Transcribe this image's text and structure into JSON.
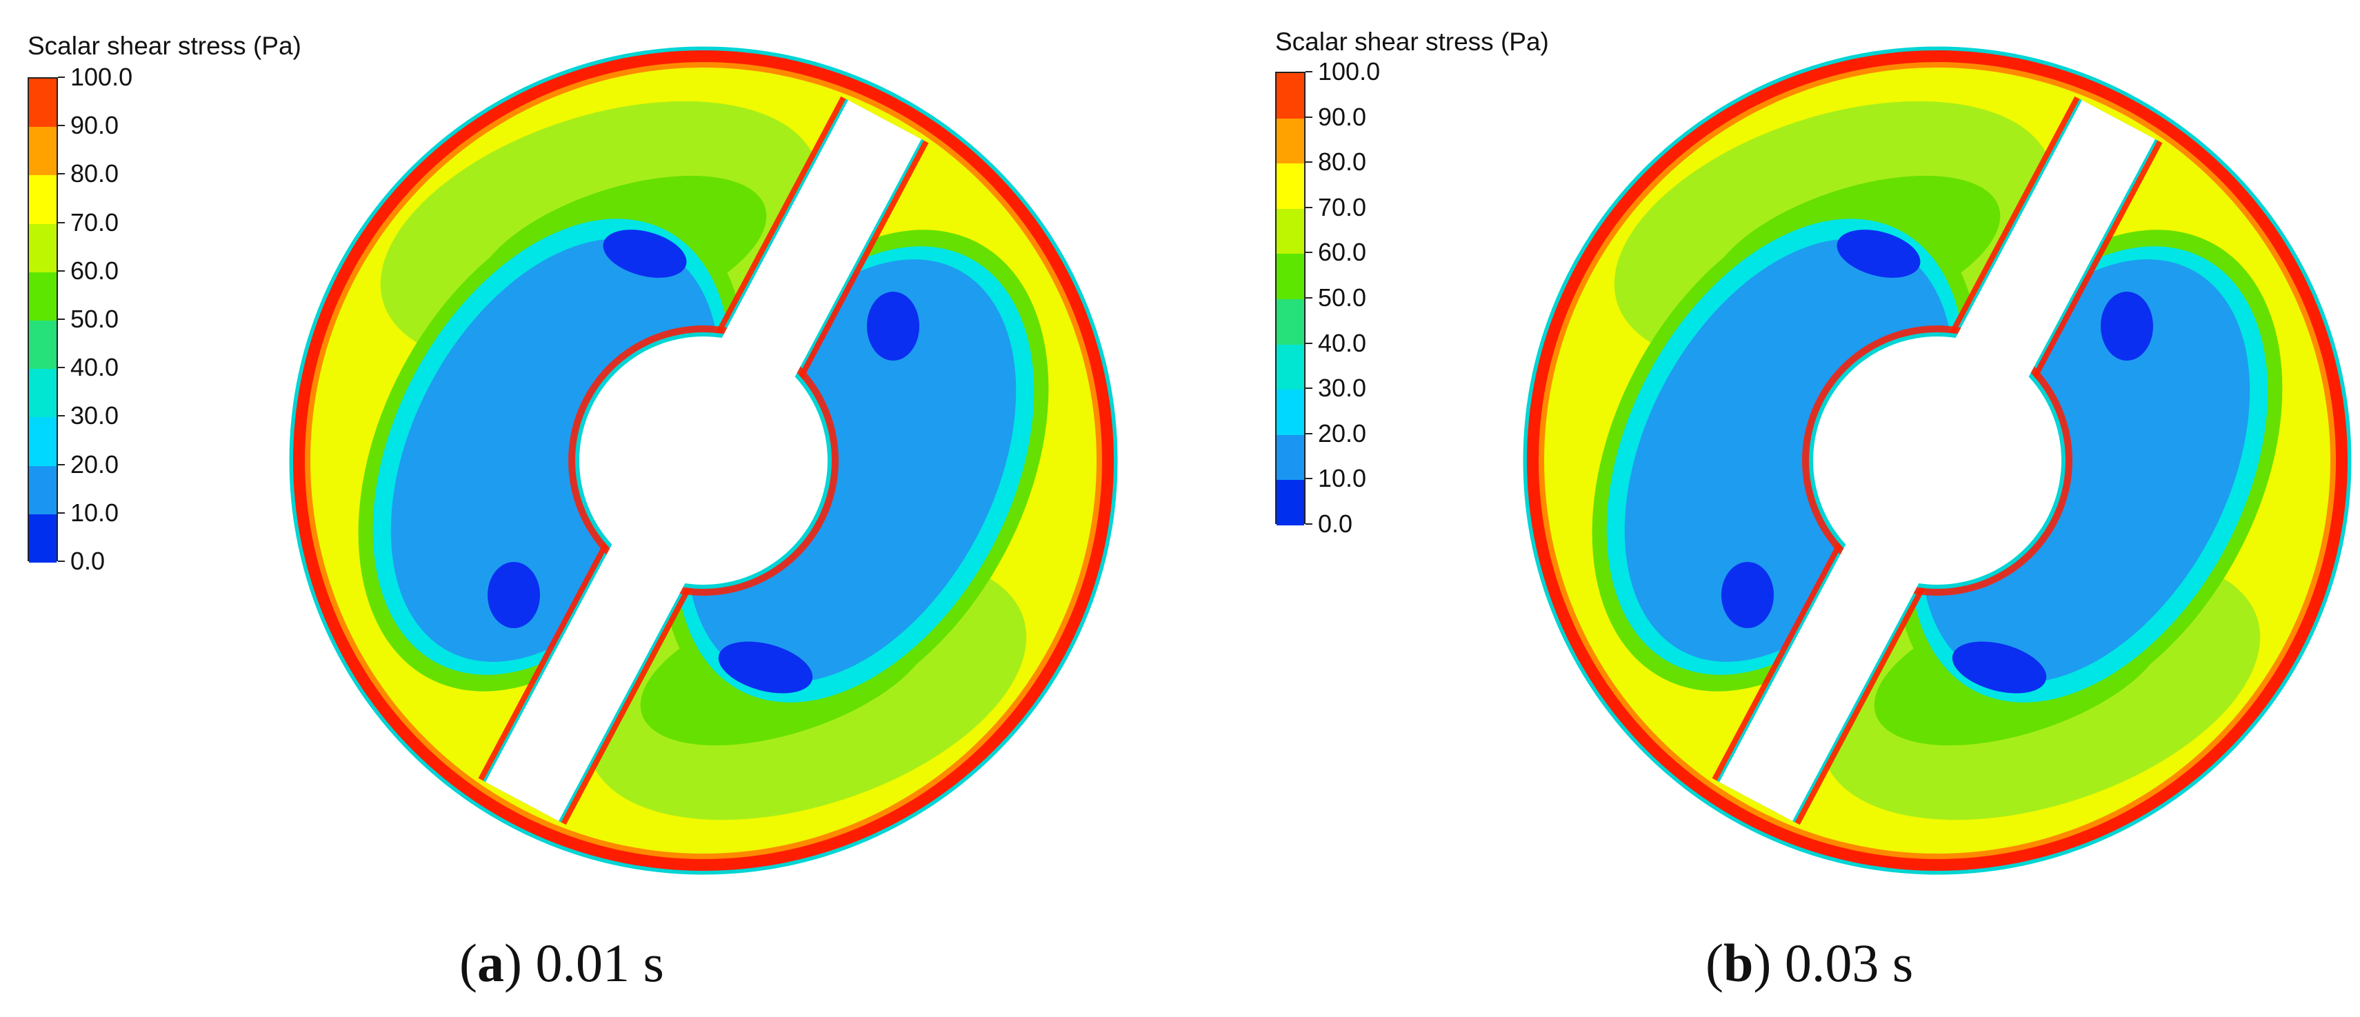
{
  "figures": [
    {
      "id": "a",
      "legend_title": "Scalar shear stress (Pa)",
      "caption_letter": "a",
      "caption_time": "0.01 s"
    },
    {
      "id": "b",
      "legend_title": "Scalar shear stress (Pa)",
      "caption_letter": "b",
      "caption_time": "0.03 s"
    }
  ],
  "legend": {
    "ticks": [
      "100.0",
      "90.0",
      "80.0",
      "70.0",
      "60.0",
      "50.0",
      "40.0",
      "30.0",
      "20.0",
      "10.0",
      "0.0"
    ],
    "band_colors_top_to_bottom": [
      "#ff4400",
      "#ffa200",
      "#ffff00",
      "#bef500",
      "#5ce600",
      "#26e07a",
      "#00e6d2",
      "#00d8ff",
      "#1a96f2",
      "#0030ee"
    ]
  },
  "colors": {
    "rim_red": "#ff1d00",
    "rim_orange": "#ff8a00",
    "outer_yellow": "#f0fa00",
    "outer_green": "#a6ee1a",
    "mid_green": "#66e000",
    "cyan": "#00e5e5",
    "inner_blue": "#1e9cf0",
    "deep_blue": "#0a2ff0",
    "outline_cyan": "#00d4d4"
  }
}
